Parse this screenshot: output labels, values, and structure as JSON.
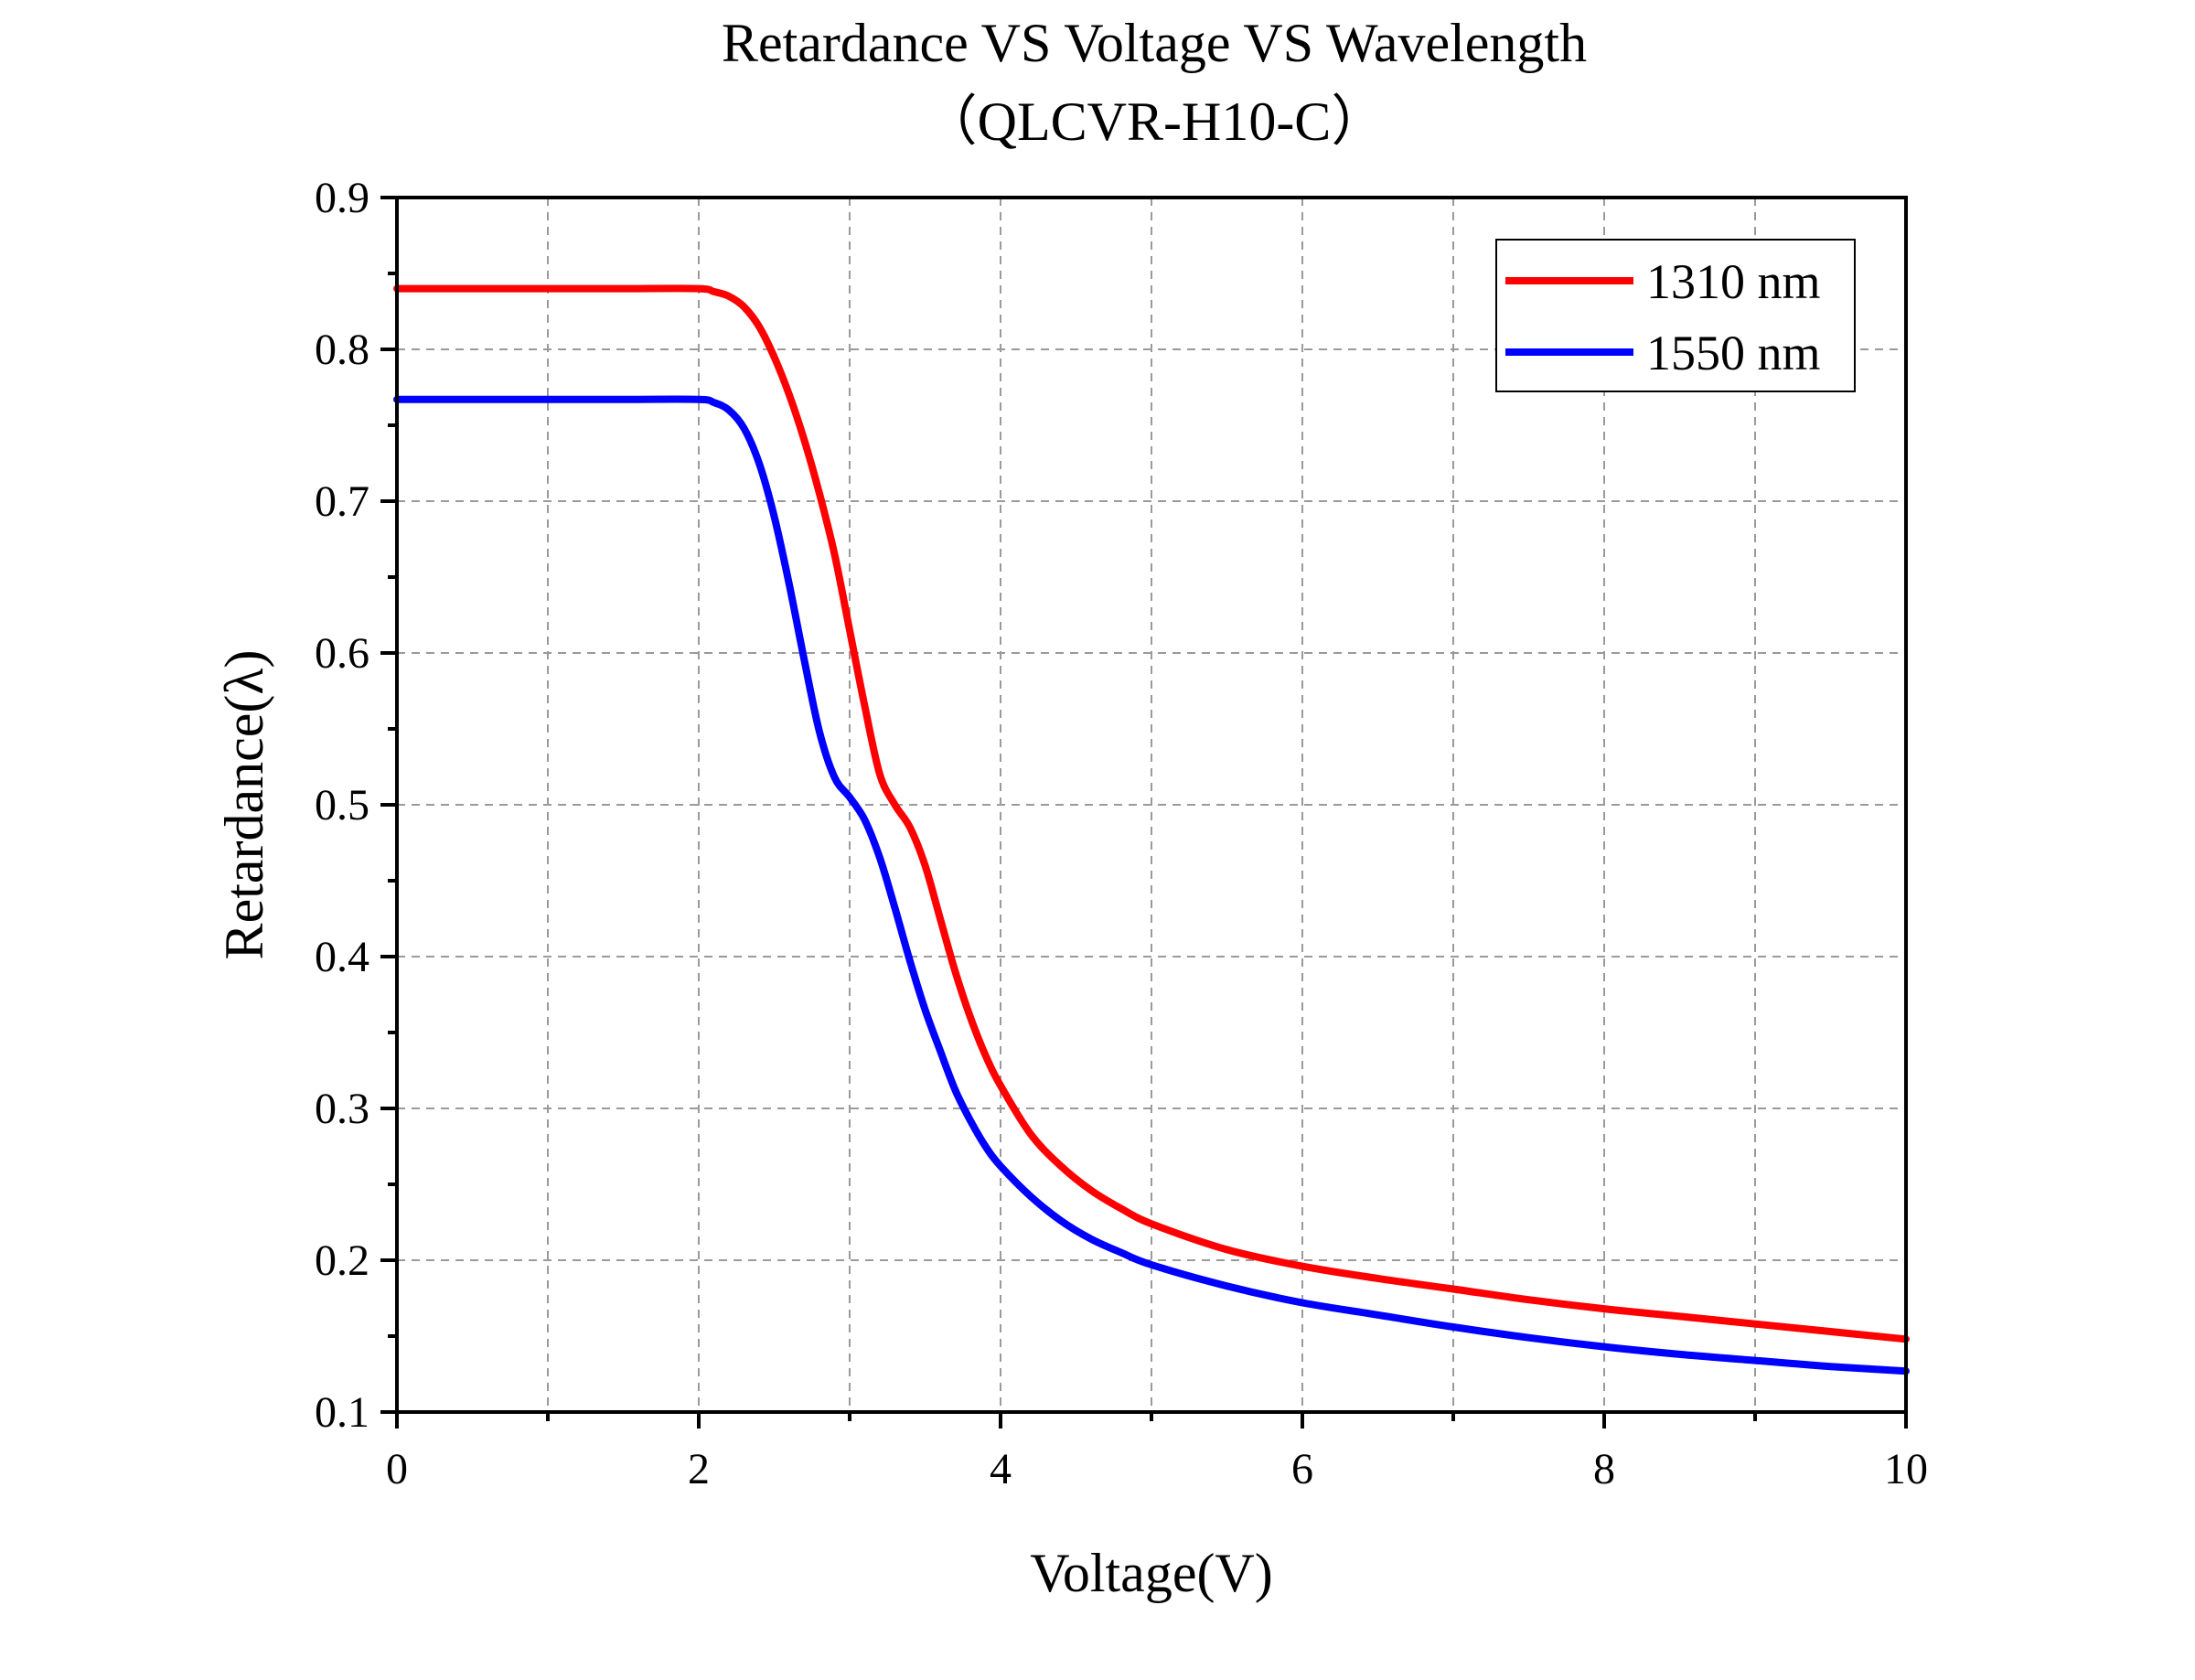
{
  "chart_data": {
    "type": "line",
    "title": "Retardance VS Voltage VS Wavelength",
    "subtitle": "（QLCVR-H10-C）",
    "xlabel": "Voltage(V)",
    "ylabel": "Retardance(λ)",
    "xlim": [
      0,
      10
    ],
    "ylim": [
      0.1,
      0.9
    ],
    "x_ticks": [
      "0",
      "2",
      "4",
      "6",
      "8",
      "10"
    ],
    "y_ticks": [
      "0.1",
      "0.2",
      "0.3",
      "0.4",
      "0.5",
      "0.6",
      "0.7",
      "0.8",
      "0.9"
    ],
    "grid": true,
    "legend_position": "top-right",
    "series": [
      {
        "name": "1310 nm",
        "color": "#ff0000",
        "x": [
          0,
          0.5,
          1.0,
          1.5,
          2.0,
          2.1,
          2.2,
          2.3,
          2.4,
          2.5,
          2.6,
          2.7,
          2.8,
          2.9,
          3.0,
          3.1,
          3.2,
          3.3,
          3.4,
          3.5,
          3.6,
          3.7,
          3.8,
          3.9,
          4.0,
          4.2,
          4.4,
          4.6,
          4.8,
          5.0,
          5.5,
          6.0,
          6.5,
          7.0,
          7.5,
          8.0,
          8.5,
          9.0,
          9.5,
          10.0
        ],
        "y": [
          0.84,
          0.84,
          0.84,
          0.84,
          0.84,
          0.838,
          0.835,
          0.828,
          0.815,
          0.795,
          0.77,
          0.74,
          0.705,
          0.665,
          0.615,
          0.565,
          0.52,
          0.5,
          0.485,
          0.46,
          0.425,
          0.39,
          0.36,
          0.335,
          0.315,
          0.283,
          0.262,
          0.246,
          0.234,
          0.224,
          0.207,
          0.196,
          0.188,
          0.181,
          0.174,
          0.168,
          0.163,
          0.158,
          0.153,
          0.148
        ]
      },
      {
        "name": "1550 nm",
        "color": "#0000ff",
        "x": [
          0,
          0.5,
          1.0,
          1.5,
          2.0,
          2.1,
          2.2,
          2.3,
          2.4,
          2.5,
          2.6,
          2.7,
          2.8,
          2.9,
          3.0,
          3.1,
          3.2,
          3.3,
          3.4,
          3.5,
          3.6,
          3.7,
          3.8,
          3.9,
          4.0,
          4.2,
          4.4,
          4.6,
          4.8,
          5.0,
          5.5,
          6.0,
          6.5,
          7.0,
          7.5,
          8.0,
          8.5,
          9.0,
          9.5,
          10.0
        ],
        "y": [
          0.767,
          0.767,
          0.767,
          0.767,
          0.767,
          0.765,
          0.76,
          0.748,
          0.725,
          0.69,
          0.645,
          0.595,
          0.548,
          0.518,
          0.505,
          0.49,
          0.465,
          0.432,
          0.397,
          0.365,
          0.338,
          0.312,
          0.292,
          0.275,
          0.262,
          0.242,
          0.226,
          0.214,
          0.205,
          0.197,
          0.183,
          0.172,
          0.164,
          0.156,
          0.149,
          0.143,
          0.138,
          0.134,
          0.13,
          0.127
        ]
      }
    ]
  }
}
